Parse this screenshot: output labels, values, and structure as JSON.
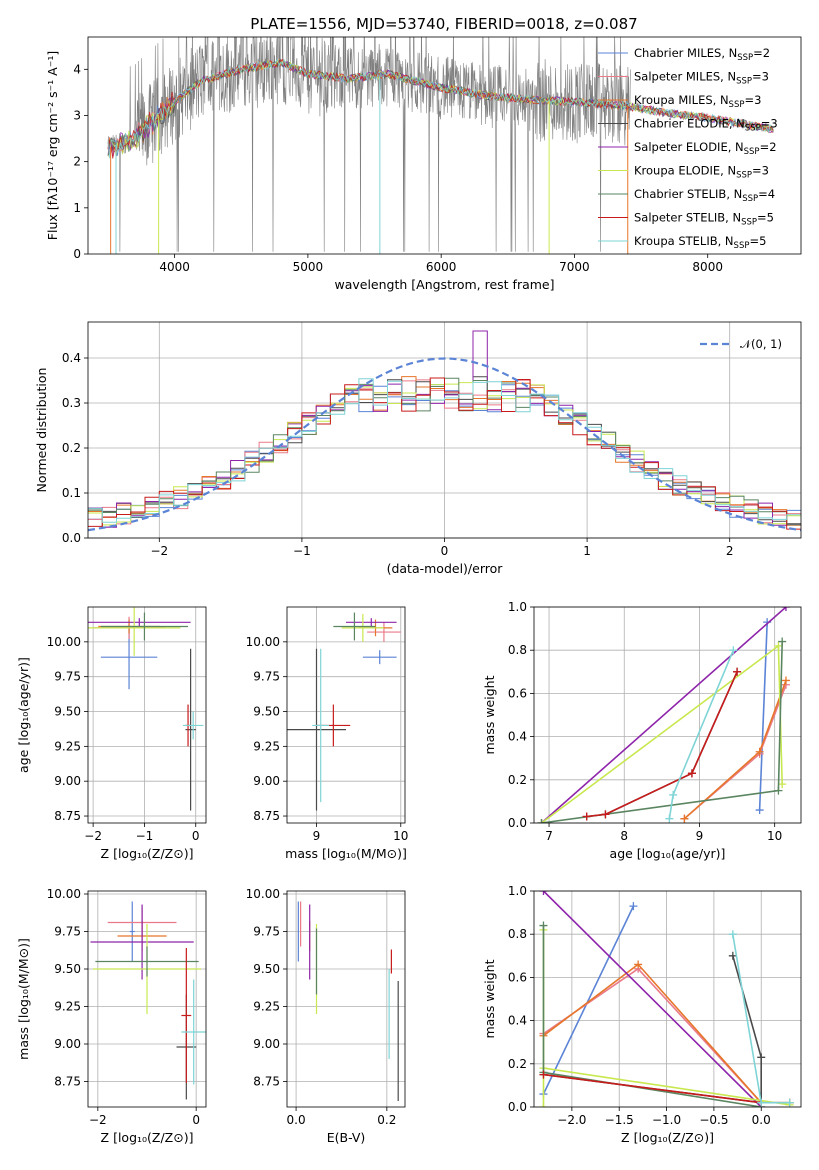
{
  "title": "PLATE=1556, MJD=53740, FIBERID=0018, z=0.087",
  "colors": [
    "#5b84d6",
    "#ea7a89",
    "#e6762a",
    "#4a4a4a",
    "#8e24aa",
    "#c8e84f",
    "#5a8560",
    "#c81b1b",
    "#7fd4d6"
  ],
  "spectrum": {
    "xlabel": "wavelength [Angstrom, rest frame]",
    "ylabel": "Flux [fλ10⁻¹⁷ erg cm⁻² s⁻¹ A⁻¹]",
    "xlim": [
      3350,
      8700
    ],
    "ylim": [
      0,
      4.7
    ],
    "xticks": [
      "4000",
      "5000",
      "6000",
      "7000",
      "8000"
    ],
    "yticks": [
      "0",
      "1",
      "2",
      "3",
      "4"
    ],
    "legend": [
      "Chabrier MILES, NSSP=2",
      "Salpeter MILES, NSSP=3",
      "Kroupa MILES, NSSP=3",
      "Chabrier ELODIE, NSSP=3",
      "Salpeter ELODIE, NSSP=2",
      "Kroupa ELODIE, NSSP=3",
      "Chabrier STELIB, NSSP=4",
      "Salpeter STELIB, NSSP=5",
      "Kroupa STELIB, NSSP=5"
    ],
    "continuum": [
      [
        3500,
        2.3
      ],
      [
        3700,
        2.5
      ],
      [
        3850,
        2.9
      ],
      [
        4000,
        3.3
      ],
      [
        4200,
        3.75
      ],
      [
        4500,
        4.0
      ],
      [
        4800,
        4.15
      ],
      [
        5000,
        3.9
      ],
      [
        5300,
        3.8
      ],
      [
        5600,
        3.9
      ],
      [
        6000,
        3.6
      ],
      [
        6300,
        3.45
      ],
      [
        6600,
        3.35
      ],
      [
        7000,
        3.3
      ],
      [
        7400,
        3.2
      ],
      [
        7700,
        3.05
      ],
      [
        8000,
        2.95
      ],
      [
        8300,
        2.8
      ],
      [
        8500,
        2.7
      ]
    ]
  },
  "residuals": {
    "xlabel": "(data-model)/error",
    "ylabel": "Normed distribution",
    "xlim": [
      -2.5,
      2.5
    ],
    "ylim": [
      0,
      0.48
    ],
    "xticks": [
      "−2",
      "−1",
      "0",
      "1",
      "2"
    ],
    "yticks": [
      "0.0",
      "0.1",
      "0.2",
      "0.3",
      "0.4"
    ],
    "legend": "𝒩(0, 1)",
    "hist_bins": 50
  },
  "age_z": {
    "xlabel": "Z [log₁₀(Z/Z⊙)]",
    "ylabel": "age  [log₁₀(age/yr)]",
    "xlim": [
      -2.1,
      0.2
    ],
    "ylim": [
      8.7,
      10.25
    ],
    "xticks": [
      "−2",
      "−1",
      "0"
    ],
    "xtickvals": [
      -2,
      -1,
      0
    ],
    "yticks": [
      "8.75",
      "9.00",
      "9.25",
      "9.50",
      "9.75",
      "10.00"
    ],
    "ytickvals": [
      8.75,
      9.0,
      9.25,
      9.5,
      9.75,
      10.0
    ],
    "points": [
      {
        "c": 0,
        "x": -1.3,
        "y": 9.89,
        "xe": 0.55,
        "ye": 0.23
      },
      {
        "c": 1,
        "x": -1.3,
        "y": 10.1,
        "xe": 0.7,
        "ye": 0.08
      },
      {
        "c": 2,
        "x": -1.3,
        "y": 10.11,
        "xe": 0.6,
        "ye": 0.05
      },
      {
        "c": 3,
        "x": -0.1,
        "y": 9.37,
        "xe": 0.1,
        "ye": 0.58
      },
      {
        "c": 4,
        "x": -1.1,
        "y": 10.14,
        "xe": 1.0,
        "ye": 0.03
      },
      {
        "c": 5,
        "x": -1.2,
        "y": 10.1,
        "xe": 0.9,
        "ye": 0.2
      },
      {
        "c": 6,
        "x": -1.0,
        "y": 10.11,
        "xe": 0.85,
        "ye": 0.1
      },
      {
        "c": 7,
        "x": -0.15,
        "y": 9.4,
        "xe": 0.05,
        "ye": 0.15
      },
      {
        "c": 8,
        "x": -0.05,
        "y": 9.4,
        "xe": 0.2,
        "ye": 0.1
      }
    ]
  },
  "age_mass": {
    "xlabel": "mass [log₁₀(M/M⊙)]",
    "ylabel": "",
    "xlim": [
      8.65,
      10.05
    ],
    "ylim": [
      8.7,
      10.25
    ],
    "xticks": [
      "9",
      "10"
    ],
    "xtickvals": [
      9,
      10
    ],
    "yticks": [
      "8.75",
      "9.00",
      "9.25",
      "9.50",
      "9.75",
      "10.00"
    ],
    "ytickvals": [
      8.75,
      9.0,
      9.25,
      9.5,
      9.75,
      10.0
    ],
    "points": [
      {
        "c": 0,
        "x": 9.75,
        "y": 9.89,
        "xe": 0.2,
        "ye": 0.05
      },
      {
        "c": 1,
        "x": 9.8,
        "y": 10.07,
        "xe": 0.2,
        "ye": 0.07
      },
      {
        "c": 2,
        "x": 9.7,
        "y": 10.1,
        "xe": 0.2,
        "ye": 0.06
      },
      {
        "c": 3,
        "x": 9.0,
        "y": 9.37,
        "xe": 0.35,
        "ye": 0.58
      },
      {
        "c": 4,
        "x": 9.65,
        "y": 10.14,
        "xe": 0.3,
        "ye": 0.03
      },
      {
        "c": 5,
        "x": 9.55,
        "y": 10.1,
        "xe": 0.25,
        "ye": 0.1
      },
      {
        "c": 6,
        "x": 9.45,
        "y": 10.11,
        "xe": 0.25,
        "ye": 0.1
      },
      {
        "c": 7,
        "x": 9.2,
        "y": 9.4,
        "xe": 0.2,
        "ye": 0.15
      },
      {
        "c": 8,
        "x": 9.05,
        "y": 9.4,
        "xe": 0.1,
        "ye": 0.55
      }
    ]
  },
  "mw_age": {
    "xlabel": "age  [log₁₀(age/yr)]",
    "ylabel": "mass weight",
    "xlim": [
      6.8,
      10.35
    ],
    "ylim": [
      0,
      1.0
    ],
    "xticks": [
      "7",
      "8",
      "9",
      "10"
    ],
    "xtickvals": [
      7,
      8,
      9,
      10
    ],
    "yticks": [
      "0.0",
      "0.2",
      "0.4",
      "0.6",
      "0.8",
      "1.0"
    ],
    "ytickvals": [
      0,
      0.2,
      0.4,
      0.6,
      0.8,
      1.0
    ],
    "series": [
      {
        "c": 0,
        "pts": [
          [
            9.8,
            0.06
          ],
          [
            9.9,
            0.93
          ]
        ]
      },
      {
        "c": 1,
        "pts": [
          [
            8.8,
            0.02
          ],
          [
            9.8,
            0.32
          ],
          [
            10.15,
            0.64
          ]
        ]
      },
      {
        "c": 2,
        "pts": [
          [
            8.8,
            0.02
          ],
          [
            9.8,
            0.33
          ],
          [
            10.15,
            0.66
          ]
        ]
      },
      {
        "c": 3,
        "pts": [
          [
            7.5,
            0.03
          ],
          [
            7.75,
            0.04
          ],
          [
            8.9,
            0.23
          ],
          [
            9.5,
            0.7
          ]
        ]
      },
      {
        "c": 4,
        "pts": [
          [
            6.9,
            0.0
          ],
          [
            10.15,
            1.0
          ]
        ]
      },
      {
        "c": 5,
        "pts": [
          [
            6.9,
            0.0
          ],
          [
            10.05,
            0.82
          ],
          [
            10.1,
            0.18
          ]
        ]
      },
      {
        "c": 6,
        "pts": [
          [
            6.9,
            0.0
          ],
          [
            10.05,
            0.15
          ],
          [
            10.1,
            0.84
          ]
        ]
      },
      {
        "c": 7,
        "pts": [
          [
            7.5,
            0.03
          ],
          [
            7.75,
            0.04
          ],
          [
            8.9,
            0.23
          ],
          [
            9.5,
            0.7
          ]
        ]
      },
      {
        "c": 8,
        "pts": [
          [
            8.6,
            0.02
          ],
          [
            8.65,
            0.13
          ],
          [
            9.45,
            0.8
          ]
        ]
      }
    ]
  },
  "mass_z": {
    "xlabel": "Z [log₁₀(Z/Z⊙)]",
    "ylabel": "mass [log₁₀(M/M⊙)]",
    "xlim": [
      -2.2,
      0.2
    ],
    "ylim": [
      8.58,
      10.02
    ],
    "xticks": [
      "−2",
      "0"
    ],
    "xtickvals": [
      -2,
      0
    ],
    "yticks": [
      "8.75",
      "9.00",
      "9.25",
      "9.50",
      "9.75",
      "10.00"
    ],
    "ytickvals": [
      8.75,
      9.0,
      9.25,
      9.5,
      9.75,
      10.0
    ],
    "points": [
      {
        "c": 0,
        "x": -1.3,
        "y": 9.75,
        "xe": 0.05,
        "ye": 0.2
      },
      {
        "c": 1,
        "x": -1.1,
        "y": 9.81,
        "xe": 0.7,
        "ye": 0.1
      },
      {
        "c": 2,
        "x": -1.1,
        "y": 9.72,
        "xe": 0.5,
        "ye": 0.1
      },
      {
        "c": 3,
        "x": -0.2,
        "y": 8.98,
        "xe": 0.2,
        "ye": 0.35
      },
      {
        "c": 4,
        "x": -1.1,
        "y": 9.68,
        "xe": 1.05,
        "ye": 0.25
      },
      {
        "c": 5,
        "x": -1.0,
        "y": 9.5,
        "xe": 1.1,
        "ye": 0.3
      },
      {
        "c": 6,
        "x": -1.0,
        "y": 9.55,
        "xe": 1.05,
        "ye": 0.1
      },
      {
        "c": 7,
        "x": -0.2,
        "y": 9.19,
        "xe": 0.1,
        "ye": 0.45
      },
      {
        "c": 8,
        "x": -0.05,
        "y": 9.08,
        "xe": 0.25,
        "ye": 0.35
      }
    ]
  },
  "mass_ebv": {
    "xlabel": "E(B-V)",
    "ylabel": "",
    "xlim": [
      -0.02,
      0.24
    ],
    "ylim": [
      8.58,
      10.02
    ],
    "xticks": [
      "0.0",
      "0.2"
    ],
    "xtickvals": [
      0,
      0.2
    ],
    "yticks": [
      "8.75",
      "9.00",
      "9.25",
      "9.50",
      "9.75",
      "10.00"
    ],
    "ytickvals": [
      8.75,
      9.0,
      9.25,
      9.5,
      9.75,
      10.0
    ],
    "points": [
      {
        "c": 0,
        "x": 0.005,
        "y": 9.75,
        "xe": 0,
        "ye": 0.2
      },
      {
        "c": 1,
        "x": 0.01,
        "y": 9.8,
        "xe": 0,
        "ye": 0.15
      },
      {
        "c": 2,
        "x": 0.03,
        "y": 9.72,
        "xe": 0,
        "ye": 0.1
      },
      {
        "c": 3,
        "x": 0.225,
        "y": 9.02,
        "xe": 0,
        "ye": 0.4
      },
      {
        "c": 4,
        "x": 0.03,
        "y": 9.68,
        "xe": 0,
        "ye": 0.25
      },
      {
        "c": 5,
        "x": 0.045,
        "y": 9.5,
        "xe": 0,
        "ye": 0.3
      },
      {
        "c": 6,
        "x": 0.045,
        "y": 9.55,
        "xe": 0,
        "ye": 0.22
      },
      {
        "c": 7,
        "x": 0.21,
        "y": 9.55,
        "xe": 0,
        "ye": 0.08
      },
      {
        "c": 8,
        "x": 0.205,
        "y": 9.2,
        "xe": 0,
        "ye": 0.3
      }
    ]
  },
  "mw_z": {
    "xlabel": "Z [log₁₀(Z/Z⊙)]",
    "ylabel": "mass weight",
    "xlim": [
      -2.4,
      0.42
    ],
    "ylim": [
      0,
      1.0
    ],
    "xticks": [
      "−2.0",
      "−1.5",
      "−1.0",
      "−0.5",
      "0.0"
    ],
    "xtickvals": [
      -2,
      -1.5,
      -1,
      -0.5,
      0
    ],
    "yticks": [
      "0.0",
      "0.2",
      "0.4",
      "0.6",
      "0.8",
      "1.0"
    ],
    "ytickvals": [
      0,
      0.2,
      0.4,
      0.6,
      0.8,
      1.0
    ],
    "series": [
      {
        "c": 0,
        "pts": [
          [
            -2.3,
            0.06
          ],
          [
            -1.35,
            0.93
          ]
        ]
      },
      {
        "c": 1,
        "pts": [
          [
            -2.3,
            0.34
          ],
          [
            -1.3,
            0.64
          ],
          [
            0.0,
            0.02
          ],
          [
            0.3,
            0.02
          ]
        ]
      },
      {
        "c": 2,
        "pts": [
          [
            -2.3,
            0.33
          ],
          [
            -1.3,
            0.66
          ],
          [
            0.0,
            0.02
          ],
          [
            0.3,
            0.02
          ]
        ]
      },
      {
        "c": 3,
        "pts": [
          [
            -2.3,
            0.15
          ],
          [
            0.0,
            0.02
          ],
          [
            0.0,
            0.23
          ],
          [
            -0.3,
            0.7
          ]
        ]
      },
      {
        "c": 4,
        "pts": [
          [
            -2.3,
            1.0
          ],
          [
            0.0,
            0.0
          ]
        ]
      },
      {
        "c": 5,
        "pts": [
          [
            -2.3,
            0.0
          ],
          [
            -2.3,
            0.82
          ],
          [
            -2.3,
            0.18
          ],
          [
            0.3,
            0.01
          ]
        ]
      },
      {
        "c": 6,
        "pts": [
          [
            -2.3,
            0.84
          ],
          [
            -2.3,
            0.16
          ],
          [
            0.0,
            0.0
          ]
        ]
      },
      {
        "c": 7,
        "pts": [
          [
            -2.3,
            0.15
          ],
          [
            0.0,
            0.02
          ]
        ]
      },
      {
        "c": 8,
        "pts": [
          [
            -0.3,
            0.8
          ],
          [
            0.0,
            0.02
          ],
          [
            0.3,
            0.02
          ]
        ]
      }
    ]
  }
}
